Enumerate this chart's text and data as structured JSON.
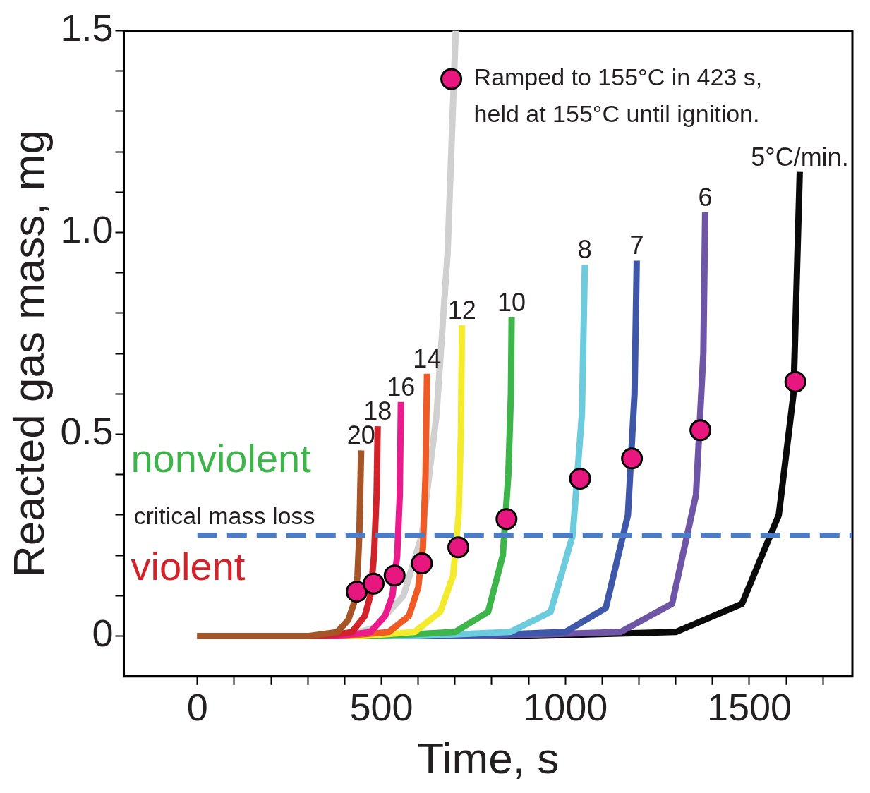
{
  "chart_data": {
    "type": "line",
    "xlabel": "Time, s",
    "ylabel": "Reacted gas mass, mg",
    "xlim": [
      -200,
      1780
    ],
    "ylim": [
      -0.1,
      1.5
    ],
    "xticks": [
      0,
      {
        "value": 100,
        "label": null
      },
      {
        "value": 200,
        "label": null
      },
      {
        "value": 300,
        "label": null
      },
      {
        "value": 400,
        "label": null
      },
      500,
      {
        "value": 600,
        "label": null
      },
      {
        "value": 700,
        "label": null
      },
      {
        "value": 800,
        "label": null
      },
      {
        "value": 900,
        "label": null
      },
      1000,
      {
        "value": 1100,
        "label": null
      },
      {
        "value": 1200,
        "label": null
      },
      {
        "value": 1300,
        "label": null
      },
      {
        "value": 1400,
        "label": null
      },
      1500,
      {
        "value": 1600,
        "label": null
      },
      {
        "value": 1700,
        "label": null
      }
    ],
    "yticks": [
      0,
      {
        "value": 0.1,
        "label": null
      },
      {
        "value": 0.2,
        "label": null
      },
      {
        "value": 0.3,
        "label": null
      },
      {
        "value": 0.4,
        "label": null
      },
      0.5,
      {
        "value": 0.6,
        "label": null
      },
      {
        "value": 0.7,
        "label": null
      },
      {
        "value": 0.8,
        "label": null
      },
      {
        "value": 0.9,
        "label": null
      },
      {
        "value": 1.0,
        "label": "1.0"
      },
      {
        "value": 1.1,
        "label": null
      },
      {
        "value": 1.2,
        "label": null
      },
      {
        "value": 1.3,
        "label": null
      },
      {
        "value": 1.4,
        "label": null
      },
      1.5
    ],
    "grid": false,
    "legend": false,
    "marker": "none",
    "line_style": "solid",
    "series": [
      {
        "name": "20",
        "color": "#a65528",
        "x": [
          0,
          300,
          380,
          410,
          425,
          435,
          440,
          445
        ],
        "values": [
          0,
          0,
          0.01,
          0.04,
          0.08,
          0.15,
          0.25,
          0.46
        ]
      },
      {
        "name": "18",
        "color": "#d2232a",
        "x": [
          0,
          350,
          420,
          455,
          470,
          480,
          487,
          490
        ],
        "values": [
          0,
          0,
          0.01,
          0.05,
          0.1,
          0.2,
          0.35,
          0.52
        ]
      },
      {
        "name": "16",
        "color": "#ec1a8c",
        "x": [
          0,
          380,
          470,
          510,
          530,
          543,
          550,
          553
        ],
        "values": [
          0,
          0,
          0.01,
          0.05,
          0.1,
          0.2,
          0.35,
          0.58
        ]
      },
      {
        "name": "14",
        "color": "#f05a24",
        "x": [
          0,
          400,
          520,
          575,
          600,
          613,
          620,
          624
        ],
        "values": [
          0,
          0,
          0.01,
          0.05,
          0.12,
          0.22,
          0.4,
          0.65
        ]
      },
      {
        "name": "12",
        "color": "#f3eb2c",
        "x": [
          0,
          450,
          590,
          660,
          695,
          710,
          716,
          719
        ],
        "values": [
          0,
          0,
          0.01,
          0.06,
          0.15,
          0.3,
          0.5,
          0.77
        ]
      },
      {
        "name": "10",
        "color": "#3db54a",
        "x": [
          0,
          500,
          700,
          790,
          830,
          845,
          852,
          854
        ],
        "values": [
          0,
          0,
          0.01,
          0.06,
          0.2,
          0.4,
          0.6,
          0.79
        ]
      },
      {
        "name": "8",
        "color": "#6ccbdc",
        "x": [
          0,
          600,
          850,
          960,
          1020,
          1045,
          1053
        ],
        "values": [
          0,
          0,
          0.01,
          0.06,
          0.25,
          0.55,
          0.92
        ]
      },
      {
        "name": "7",
        "color": "#3f57a8",
        "x": [
          0,
          700,
          1000,
          1110,
          1170,
          1188,
          1194
        ],
        "values": [
          0,
          0,
          0.01,
          0.07,
          0.3,
          0.6,
          0.93
        ]
      },
      {
        "name": "6",
        "color": "#6e55a5",
        "x": [
          0,
          800,
          1150,
          1290,
          1355,
          1375,
          1380
        ],
        "values": [
          0,
          0,
          0.01,
          0.08,
          0.35,
          0.7,
          1.05
        ]
      },
      {
        "name": "5°C/min.",
        "color": "#0a0a0a",
        "x": [
          0,
          900,
          1300,
          1480,
          1580,
          1620,
          1637
        ],
        "values": [
          0,
          0,
          0.01,
          0.08,
          0.3,
          0.6,
          1.15
        ]
      },
      {
        "color": "#cfd0cf",
        "x": [
          0,
          400,
          480,
          560,
          610,
          650,
          680,
          702
        ],
        "values": [
          0,
          0,
          0.02,
          0.1,
          0.25,
          0.55,
          0.95,
          1.5
        ]
      },
      {
        "type": "scatter",
        "marker": "circle",
        "color": "#e8177f",
        "x": [
          433,
          479,
          536,
          610,
          709,
          840,
          1040,
          1181,
          1367,
          1625,
          690
        ],
        "values": [
          0.11,
          0.13,
          0.15,
          0.18,
          0.22,
          0.29,
          0.39,
          0.44,
          0.51,
          0.63,
          1.38
        ]
      }
    ],
    "ref_lines": [
      {
        "axis": "y",
        "value": 0.25,
        "label": "critical mass loss",
        "color": "#4a7cc8",
        "line_style": "dashed"
      }
    ],
    "annotations": [
      {
        "text": "Ramped to 155°C in 423 s, held at 155°C until ignition.",
        "x": 690,
        "y": 1.38
      },
      "nonviolent",
      "violent"
    ]
  }
}
